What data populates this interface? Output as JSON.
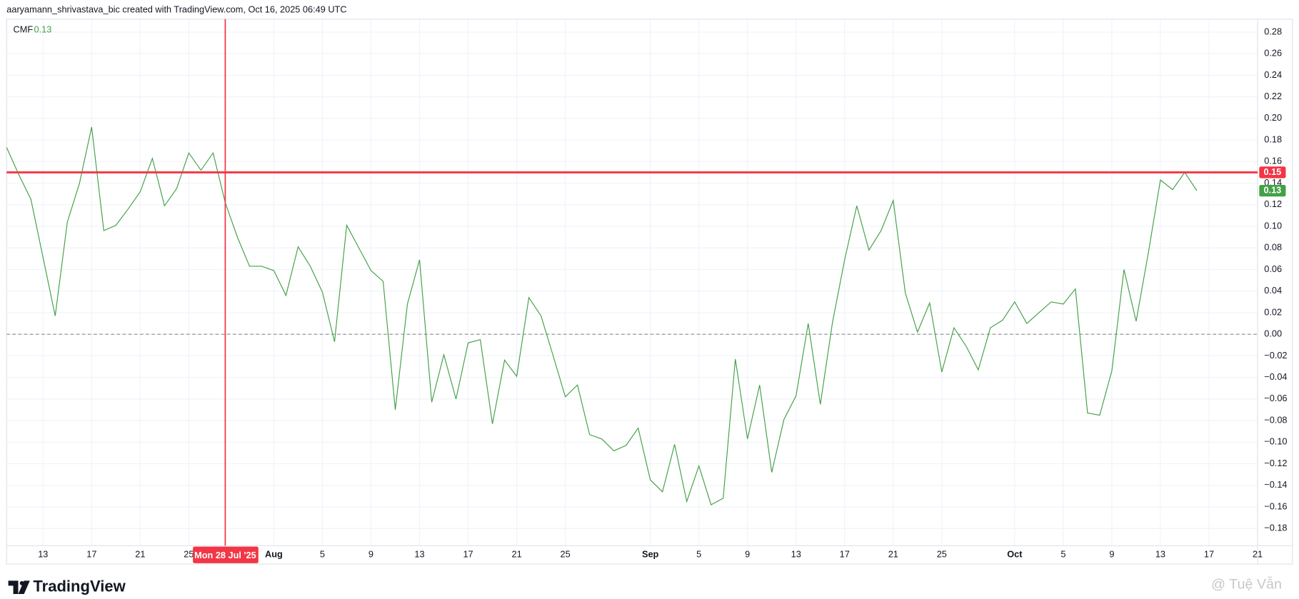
{
  "header": {
    "attribution": "aaryamann_shrivastava_bic created with TradingView.com, Oct 16, 2025 06:49 UTC"
  },
  "footer": {
    "brand": "TradingView",
    "watermark": "@ Tuệ Vẫn"
  },
  "chart_data": {
    "type": "line",
    "x": [
      "2025-07-10",
      "2025-07-11",
      "2025-07-12",
      "2025-07-13",
      "2025-07-14",
      "2025-07-15",
      "2025-07-16",
      "2025-07-17",
      "2025-07-18",
      "2025-07-19",
      "2025-07-20",
      "2025-07-21",
      "2025-07-22",
      "2025-07-23",
      "2025-07-24",
      "2025-07-25",
      "2025-07-26",
      "2025-07-27",
      "2025-07-28",
      "2025-07-29",
      "2025-07-30",
      "2025-07-31",
      "2025-08-01",
      "2025-08-02",
      "2025-08-03",
      "2025-08-04",
      "2025-08-05",
      "2025-08-06",
      "2025-08-07",
      "2025-08-08",
      "2025-08-09",
      "2025-08-10",
      "2025-08-11",
      "2025-08-12",
      "2025-08-13",
      "2025-08-14",
      "2025-08-15",
      "2025-08-16",
      "2025-08-17",
      "2025-08-18",
      "2025-08-19",
      "2025-08-20",
      "2025-08-21",
      "2025-08-22",
      "2025-08-23",
      "2025-08-24",
      "2025-08-25",
      "2025-08-26",
      "2025-08-27",
      "2025-08-28",
      "2025-08-29",
      "2025-08-30",
      "2025-08-31",
      "2025-09-01",
      "2025-09-02",
      "2025-09-03",
      "2025-09-04",
      "2025-09-05",
      "2025-09-06",
      "2025-09-07",
      "2025-09-08",
      "2025-09-09",
      "2025-09-10",
      "2025-09-11",
      "2025-09-12",
      "2025-09-13",
      "2025-09-14",
      "2025-09-15",
      "2025-09-16",
      "2025-09-17",
      "2025-09-18",
      "2025-09-19",
      "2025-09-20",
      "2025-09-21",
      "2025-09-22",
      "2025-09-23",
      "2025-09-24",
      "2025-09-25",
      "2025-09-26",
      "2025-09-27",
      "2025-09-28",
      "2025-09-29",
      "2025-09-30",
      "2025-10-01",
      "2025-10-02",
      "2025-10-03",
      "2025-10-04",
      "2025-10-05",
      "2025-10-06",
      "2025-10-07",
      "2025-10-08",
      "2025-10-09",
      "2025-10-10",
      "2025-10-11",
      "2025-10-12",
      "2025-10-13",
      "2025-10-14",
      "2025-10-15",
      "2025-10-16"
    ],
    "series": [
      {
        "name": "CMF",
        "color": "#43a047",
        "last_label": "0.13",
        "values": [
          0.173,
          0.148,
          0.125,
          0.071,
          0.017,
          0.104,
          0.14,
          0.192,
          0.096,
          0.101,
          0.116,
          0.132,
          0.163,
          0.119,
          0.135,
          0.168,
          0.152,
          0.168,
          0.122,
          0.09,
          0.063,
          0.063,
          0.059,
          0.036,
          0.081,
          0.063,
          0.039,
          -0.007,
          0.101,
          0.08,
          0.059,
          0.049,
          -0.07,
          0.028,
          0.069,
          -0.063,
          -0.019,
          -0.06,
          -0.008,
          -0.005,
          -0.083,
          -0.024,
          -0.039,
          0.034,
          0.017,
          -0.02,
          -0.058,
          -0.047,
          -0.093,
          -0.097,
          -0.108,
          -0.103,
          -0.087,
          -0.135,
          -0.146,
          -0.102,
          -0.155,
          -0.122,
          -0.158,
          -0.152,
          -0.023,
          -0.097,
          -0.047,
          -0.128,
          -0.079,
          -0.057,
          0.01,
          -0.065,
          0.011,
          0.069,
          0.119,
          0.078,
          0.096,
          0.124,
          0.038,
          0.002,
          0.029,
          -0.035,
          0.006,
          -0.011,
          -0.033,
          0.006,
          0.013,
          0.03,
          0.01,
          0.02,
          0.03,
          0.028,
          0.042,
          -0.073,
          -0.075,
          -0.034,
          0.06,
          0.012,
          0.075,
          0.143,
          0.134,
          0.15,
          0.133
        ]
      }
    ],
    "xlim": [
      "2025-07-10",
      "2025-10-21"
    ],
    "xticks": [
      {
        "value": "2025-07-13",
        "label": "13"
      },
      {
        "value": "2025-07-17",
        "label": "17"
      },
      {
        "value": "2025-07-21",
        "label": "21"
      },
      {
        "value": "2025-07-25",
        "label": "25"
      },
      {
        "value": "2025-08-01",
        "label": "Aug"
      },
      {
        "value": "2025-08-05",
        "label": "5"
      },
      {
        "value": "2025-08-09",
        "label": "9"
      },
      {
        "value": "2025-08-13",
        "label": "13"
      },
      {
        "value": "2025-08-17",
        "label": "17"
      },
      {
        "value": "2025-08-21",
        "label": "21"
      },
      {
        "value": "2025-08-25",
        "label": "25"
      },
      {
        "value": "2025-09-01",
        "label": "Sep"
      },
      {
        "value": "2025-09-05",
        "label": "5"
      },
      {
        "value": "2025-09-09",
        "label": "9"
      },
      {
        "value": "2025-09-13",
        "label": "13"
      },
      {
        "value": "2025-09-17",
        "label": "17"
      },
      {
        "value": "2025-09-21",
        "label": "21"
      },
      {
        "value": "2025-09-25",
        "label": "25"
      },
      {
        "value": "2025-10-01",
        "label": "Oct"
      },
      {
        "value": "2025-10-05",
        "label": "5"
      },
      {
        "value": "2025-10-09",
        "label": "9"
      },
      {
        "value": "2025-10-13",
        "label": "13"
      },
      {
        "value": "2025-10-17",
        "label": "17"
      },
      {
        "value": "2025-10-21",
        "label": "21"
      }
    ],
    "ylim": [
      -0.196,
      0.292
    ],
    "yticks": [
      0.28,
      0.26,
      0.24,
      0.22,
      {
        "value": 0.2,
        "label": "0.20"
      },
      0.18,
      0.16,
      0.14,
      0.12,
      {
        "value": 0.1,
        "label": "0.10"
      },
      0.08,
      0.06,
      0.04,
      0.02,
      {
        "value": 0,
        "label": "0.00"
      },
      {
        "value": -0.02,
        "label": "−0.02"
      },
      {
        "value": -0.04,
        "label": "−0.04"
      },
      {
        "value": -0.06,
        "label": "−0.06"
      },
      {
        "value": -0.08,
        "label": "−0.08"
      },
      {
        "value": -0.1,
        "label": "−0.10"
      },
      {
        "value": -0.12,
        "label": "−0.12"
      },
      {
        "value": -0.14,
        "label": "−0.14"
      },
      {
        "value": -0.16,
        "label": "−0.16"
      },
      {
        "value": -0.18,
        "label": "−0.18"
      }
    ],
    "grid": true,
    "baseline": 0,
    "crosshair": {
      "x": "2025-07-28",
      "x_label": "Mon 28 Jul '25",
      "y": 0.15,
      "y_label": "0.15",
      "color": "#f23645"
    }
  }
}
